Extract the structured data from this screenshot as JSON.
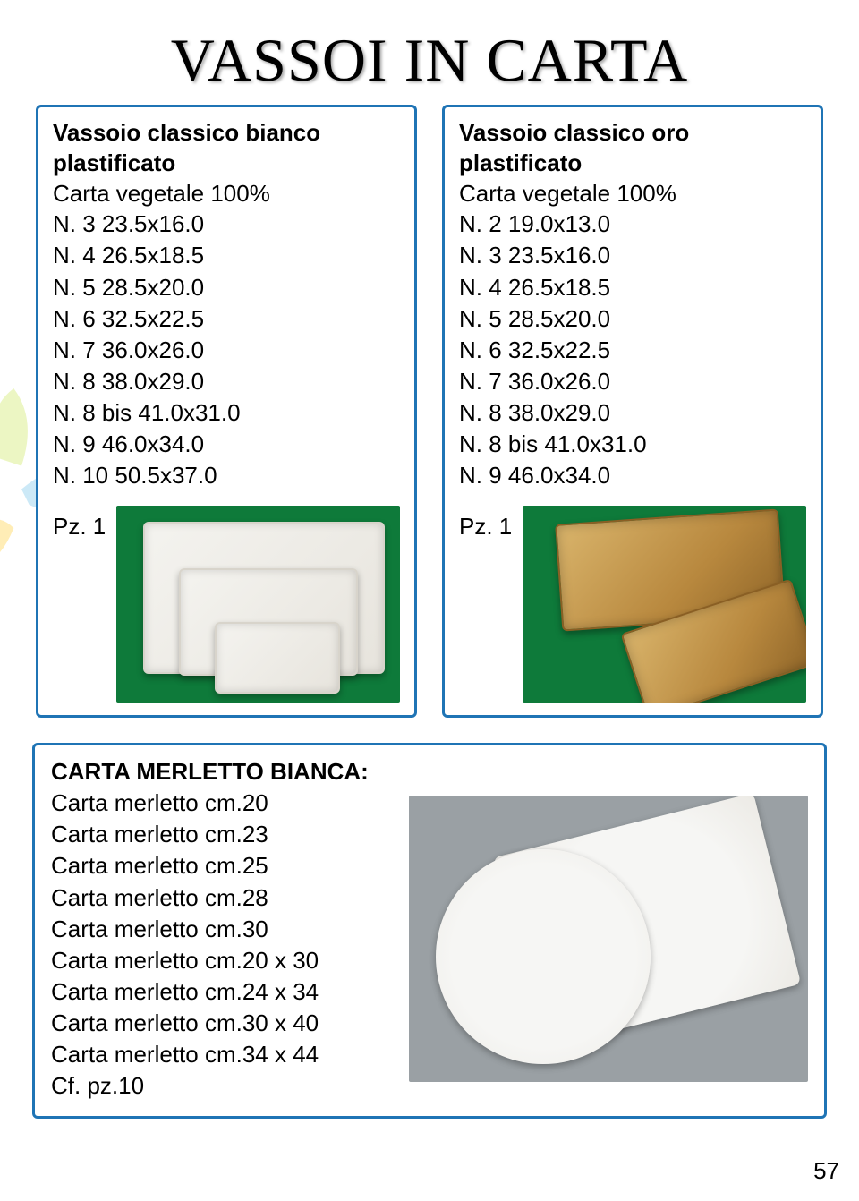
{
  "page": {
    "title": "VASSOI IN CARTA",
    "number": "57",
    "border_color": "#1f74b5",
    "background_color": "#ffffff",
    "text_color": "#000000",
    "font_family": "Comic Sans MS",
    "title_fontsize": 68,
    "body_fontsize": 26
  },
  "card_bianco": {
    "heading": "Vassoio classico bianco plastificato",
    "material": "Carta vegetale 100%",
    "sizes": [
      "N. 3   23.5x16.0",
      "N. 4   26.5x18.5",
      "N. 5   28.5x20.0",
      "N. 6   32.5x22.5",
      "N. 7   36.0x26.0",
      "N. 8   38.0x29.0",
      "N. 8 bis   41.0x31.0",
      "N. 9   46.0x34.0",
      "N. 10   50.5x37.0"
    ],
    "pack": "Pz. 1",
    "photo": {
      "background_color": "#0e7a3a",
      "tray_color": "#efece4"
    }
  },
  "card_oro": {
    "heading": "Vassoio classico oro plastificato",
    "material": "Carta vegetale 100%",
    "sizes": [
      "N. 2   19.0x13.0",
      "N. 3   23.5x16.0",
      "N. 4   26.5x18.5",
      "N. 5   28.5x20.0",
      "N. 6   32.5x22.5",
      "N. 7   36.0x26.0",
      "N. 8   38.0x29.0",
      "N. 8 bis   41.0x31.0",
      "N. 9   46.0x34.0"
    ],
    "pack": "Pz. 1",
    "photo": {
      "background_color": "#0e7a3a",
      "tray_color": "#c79a4e"
    }
  },
  "card_merletto": {
    "title": "CARTA MERLETTO BIANCA:",
    "items": [
      "Carta merletto cm.20",
      "Carta merletto cm.23",
      "Carta merletto cm.25",
      "Carta merletto cm.28",
      "Carta merletto cm.30",
      "Carta merletto cm.20 x 30",
      "Carta merletto cm.24 x 34",
      "Carta merletto cm.30 x 40",
      "Carta merletto cm.34 x 44"
    ],
    "pack": "Cf. pz.10",
    "photo": {
      "background_color": "#9aa0a4",
      "doily_color": "#f3f2ee"
    }
  }
}
